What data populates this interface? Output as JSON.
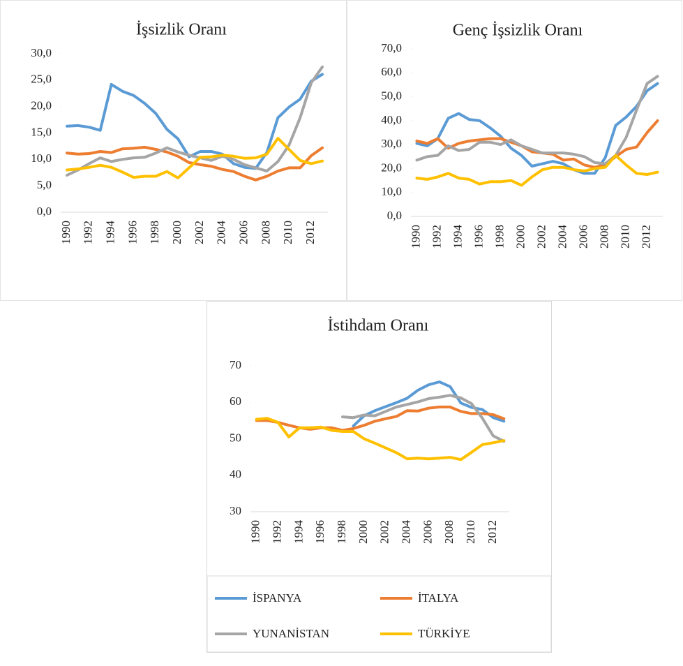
{
  "chart_data": [
    {
      "type": "line",
      "title": "İşsizlik Oranı",
      "categories": [
        "1990",
        null,
        "1992",
        null,
        "1994",
        null,
        "1996",
        null,
        "1998",
        null,
        "2000",
        null,
        "2002",
        null,
        "2004",
        null,
        "2006",
        null,
        "2008",
        null,
        "2010",
        null,
        "2012",
        null
      ],
      "ylim": [
        0,
        30
      ],
      "yticks": [
        {
          "value": 0,
          "label": "0,0"
        },
        {
          "value": 5,
          "label": "5,0"
        },
        {
          "value": 10,
          "label": "10,0"
        },
        {
          "value": 15,
          "label": "15,0"
        },
        {
          "value": 20,
          "label": "20,0"
        },
        {
          "value": 25,
          "label": "25,0"
        },
        {
          "value": 30,
          "label": "30,0"
        }
      ],
      "grid": false,
      "series": [
        {
          "color": "#5b9bd5",
          "values": [
            16.3,
            16.4,
            16.1,
            15.5,
            24.2,
            22.9,
            22.1,
            20.6,
            18.7,
            15.7,
            13.9,
            10.5,
            11.5,
            11.5,
            11.0,
            9.2,
            8.5,
            8.3,
            11.3,
            17.9,
            19.9,
            21.4,
            24.8,
            26.1
          ]
        },
        {
          "color": "#ed7d31",
          "values": [
            11.2,
            11.0,
            11.1,
            11.5,
            11.3,
            12.0,
            12.1,
            12.3,
            11.9,
            11.4,
            10.6,
            9.4,
            9.0,
            8.7,
            8.1,
            7.7,
            6.8,
            6.1,
            6.8,
            7.8,
            8.4,
            8.4,
            10.7,
            12.2
          ]
        },
        {
          "color": "#a5a5a5",
          "values": [
            7.0,
            8.0,
            9.2,
            10.3,
            9.6,
            10.0,
            10.3,
            10.4,
            11.2,
            12.2,
            11.4,
            10.8,
            10.3,
            9.8,
            10.6,
            10.0,
            9.0,
            8.4,
            7.8,
            9.6,
            12.7,
            17.9,
            24.5,
            27.5
          ]
        },
        {
          "color": "#ffc000",
          "values": [
            8.0,
            8.2,
            8.5,
            8.9,
            8.5,
            7.6,
            6.6,
            6.8,
            6.8,
            7.7,
            6.5,
            8.4,
            10.4,
            10.5,
            10.8,
            10.6,
            10.2,
            10.3,
            11.0,
            14.0,
            11.9,
            9.8,
            9.2,
            9.7
          ]
        }
      ]
    },
    {
      "type": "line",
      "title": "Genç İşsizlik Oranı",
      "categories": [
        "1990",
        null,
        "1992",
        null,
        "1994",
        null,
        "1996",
        null,
        "1998",
        null,
        "2000",
        null,
        "2002",
        null,
        "2004",
        null,
        "2006",
        null,
        "2008",
        null,
        "2010",
        null,
        "2012",
        null
      ],
      "ylim": [
        0,
        70
      ],
      "yticks": [
        {
          "value": 0,
          "label": "0,0"
        },
        {
          "value": 10,
          "label": "10,0"
        },
        {
          "value": 20,
          "label": "20,0"
        },
        {
          "value": 30,
          "label": "30,0"
        },
        {
          "value": 40,
          "label": "40,0"
        },
        {
          "value": 50,
          "label": "50,0"
        },
        {
          "value": 60,
          "label": "60,0"
        },
        {
          "value": 70,
          "label": "70,0"
        }
      ],
      "grid": false,
      "series": [
        {
          "color": "#5b9bd5",
          "values": [
            30.5,
            29.5,
            32.5,
            41.0,
            43.0,
            40.5,
            40.0,
            37.0,
            33.5,
            28.5,
            25.5,
            21.0,
            22.0,
            23.0,
            22.0,
            19.5,
            18.0,
            18.0,
            24.5,
            38.0,
            41.5,
            46.0,
            52.5,
            55.5
          ]
        },
        {
          "color": "#ed7d31",
          "values": [
            31.5,
            30.5,
            32.5,
            28.5,
            30.5,
            31.5,
            32.0,
            32.5,
            32.5,
            31.0,
            29.5,
            27.0,
            26.5,
            26.0,
            23.5,
            24.0,
            21.5,
            20.5,
            21.5,
            25.0,
            28.0,
            29.0,
            35.0,
            40.0
          ]
        },
        {
          "color": "#a5a5a5",
          "values": [
            23.5,
            25.0,
            25.5,
            29.5,
            27.5,
            28.0,
            31.0,
            31.0,
            30.0,
            32.0,
            29.5,
            28.0,
            26.5,
            26.5,
            26.5,
            26.0,
            25.0,
            22.5,
            22.0,
            25.5,
            33.0,
            44.5,
            55.5,
            58.5
          ]
        },
        {
          "color": "#ffc000",
          "values": [
            16.0,
            15.5,
            16.5,
            18.0,
            16.0,
            15.5,
            13.5,
            14.5,
            14.5,
            15.0,
            13.0,
            16.5,
            19.5,
            20.5,
            20.5,
            19.5,
            19.0,
            20.0,
            20.5,
            25.5,
            21.5,
            18.0,
            17.5,
            18.5
          ]
        }
      ]
    },
    {
      "type": "line",
      "title": "İstihdam Oranı",
      "categories": [
        "1990",
        null,
        "1992",
        null,
        "1994",
        null,
        "1996",
        null,
        "1998",
        null,
        "2000",
        null,
        "2002",
        null,
        "2004",
        null,
        "2006",
        null,
        "2008",
        null,
        "2010",
        null,
        "2012",
        null
      ],
      "ylim": [
        30,
        70
      ],
      "yticks": [
        30,
        40,
        50,
        60,
        70
      ],
      "grid": false,
      "legend": "bottom",
      "series": [
        {
          "name": "İSPANYA",
          "color": "#5b9bd5",
          "values": [
            null,
            null,
            null,
            null,
            null,
            null,
            null,
            null,
            null,
            53.5,
            56.3,
            57.7,
            58.8,
            59.9,
            61.1,
            63.3,
            64.8,
            65.6,
            64.3,
            59.8,
            58.6,
            58.0,
            55.8,
            54.8
          ]
        },
        {
          "name": "İTALYA",
          "color": "#ed7d31",
          "values": [
            55.0,
            55.0,
            54.5,
            53.7,
            53.0,
            52.6,
            53.0,
            53.0,
            52.3,
            52.8,
            53.7,
            54.8,
            55.5,
            56.1,
            57.7,
            57.6,
            58.4,
            58.7,
            58.7,
            57.5,
            56.9,
            56.9,
            56.6,
            55.5
          ]
        },
        {
          "name": "YUNANİSTAN",
          "color": "#a5a5a5",
          "values": [
            null,
            null,
            null,
            null,
            null,
            null,
            null,
            null,
            56.0,
            55.8,
            56.5,
            56.3,
            57.5,
            58.7,
            59.4,
            60.1,
            61.0,
            61.4,
            61.9,
            61.2,
            59.6,
            55.6,
            50.8,
            49.3
          ]
        },
        {
          "name": "TÜRKİYE",
          "color": "#ffc000",
          "values": [
            55.3,
            55.6,
            54.5,
            50.5,
            53.0,
            53.0,
            53.2,
            52.3,
            52.0,
            52.0,
            50.0,
            48.8,
            47.5,
            46.2,
            44.5,
            44.7,
            44.5,
            44.7,
            44.9,
            44.3,
            46.3,
            48.4,
            48.9,
            49.5
          ]
        }
      ]
    }
  ]
}
